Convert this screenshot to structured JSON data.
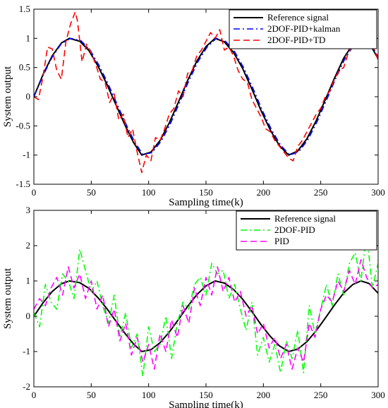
{
  "chart_data": [
    {
      "type": "line",
      "xlabel": "Sampling time(k)",
      "ylabel": "System output",
      "xlim": [
        0,
        300
      ],
      "ylim": [
        -1.5,
        1.5
      ],
      "xticks": [
        "0",
        "50",
        "100",
        "150",
        "200",
        "250",
        "300"
      ],
      "yticks": [
        "-1.5",
        "-1",
        "-0.5",
        "0",
        "0.5",
        "1",
        "1.5"
      ],
      "legend_position": "top-right",
      "series": [
        {
          "name": "Reference signal",
          "color": "#000000",
          "style": "solid",
          "x": [
            0,
            8,
            16,
            24,
            31,
            40,
            48,
            56,
            64,
            72,
            80,
            87,
            94,
            102,
            110,
            118,
            126,
            134,
            142,
            150,
            158,
            166,
            174,
            182,
            190,
            198,
            206,
            214,
            222,
            230,
            238,
            246,
            254,
            262,
            270,
            278,
            285,
            292,
            300
          ],
          "y": [
            0,
            0.38,
            0.7,
            0.92,
            1.0,
            0.95,
            0.79,
            0.52,
            0.2,
            -0.16,
            -0.51,
            -0.79,
            -1.0,
            -0.95,
            -0.75,
            -0.45,
            -0.09,
            0.28,
            0.61,
            0.86,
            1.0,
            0.94,
            0.76,
            0.48,
            0.13,
            -0.24,
            -0.57,
            -0.84,
            -1.0,
            -0.93,
            -0.72,
            -0.41,
            -0.05,
            0.32,
            0.66,
            0.9,
            1.0,
            0.93,
            0.65
          ]
        },
        {
          "name": "2DOF-PID+kalman",
          "color": "#0000ff",
          "style": "dashdot",
          "x": [
            0,
            8,
            16,
            24,
            32,
            41,
            49,
            57,
            65,
            73,
            81,
            88,
            95,
            103,
            111,
            119,
            127,
            135,
            143,
            151,
            159,
            167,
            175,
            183,
            191,
            199,
            207,
            215,
            223,
            231,
            239,
            247,
            255,
            263,
            271,
            279,
            286,
            293,
            300
          ],
          "y": [
            0,
            0.36,
            0.68,
            0.91,
            1.0,
            0.96,
            0.8,
            0.53,
            0.21,
            -0.15,
            -0.5,
            -0.78,
            -0.99,
            -0.96,
            -0.76,
            -0.46,
            -0.1,
            0.27,
            0.6,
            0.85,
            1.0,
            0.95,
            0.77,
            0.49,
            0.14,
            -0.23,
            -0.56,
            -0.83,
            -1.0,
            -0.94,
            -0.73,
            -0.42,
            -0.06,
            0.31,
            0.65,
            0.89,
            1.0,
            0.94,
            0.68
          ]
        },
        {
          "name": "2DOF-PID+TD",
          "color": "#ff0000",
          "style": "dashed",
          "x": [
            0,
            4,
            8,
            12,
            16,
            20,
            24,
            28,
            32,
            36,
            38,
            42,
            46,
            50,
            54,
            58,
            62,
            66,
            70,
            74,
            78,
            82,
            86,
            90,
            94,
            98,
            102,
            106,
            110,
            114,
            118,
            122,
            126,
            130,
            134,
            138,
            142,
            146,
            150,
            154,
            158,
            162,
            166,
            170,
            174,
            178,
            182,
            186,
            190,
            194,
            198,
            202,
            206,
            210,
            214,
            218,
            222,
            226,
            230,
            234,
            238,
            242,
            246,
            250,
            254,
            258,
            262,
            266,
            270,
            274,
            278,
            282,
            286,
            290,
            294,
            298,
            300
          ],
          "y": [
            0,
            -0.05,
            0.35,
            0.85,
            0.82,
            0.45,
            0.3,
            0.95,
            1.25,
            1.45,
            1.3,
            0.6,
            0.9,
            0.75,
            0.55,
            0.3,
            0.25,
            -0.1,
            0.05,
            -0.4,
            -0.3,
            -0.7,
            -0.55,
            -0.95,
            -1.3,
            -1.0,
            -1.1,
            -0.7,
            -0.75,
            -0.55,
            -0.3,
            -0.2,
            0.1,
            0.0,
            0.4,
            0.45,
            0.7,
            0.8,
            0.95,
            1.1,
            1.0,
            1.15,
            0.8,
            0.85,
            0.7,
            0.45,
            0.3,
            0.25,
            -0.05,
            -0.2,
            -0.35,
            -0.55,
            -0.6,
            -0.75,
            -0.85,
            -0.95,
            -1.05,
            -1.1,
            -0.85,
            -0.75,
            -0.6,
            -0.45,
            -0.3,
            -0.2,
            0.0,
            0.1,
            0.3,
            0.45,
            0.5,
            0.75,
            0.9,
            1.05,
            1.2,
            1.3,
            0.9,
            0.75,
            0.62
          ]
        }
      ]
    },
    {
      "type": "line",
      "xlabel": "Sampling time(k)",
      "ylabel": "System output",
      "xlim": [
        0,
        300
      ],
      "ylim": [
        -2,
        3
      ],
      "xticks": [
        "0",
        "50",
        "100",
        "150",
        "200",
        "250",
        "300"
      ],
      "yticks": [
        "-2",
        "-1",
        "0",
        "1",
        "2",
        "3"
      ],
      "legend_position": "top-right",
      "series": [
        {
          "name": "Reference signal",
          "color": "#000000",
          "style": "solid",
          "x": [
            0,
            8,
            16,
            24,
            31,
            40,
            48,
            56,
            64,
            72,
            80,
            87,
            94,
            102,
            110,
            118,
            126,
            134,
            142,
            150,
            158,
            166,
            174,
            182,
            190,
            198,
            206,
            214,
            222,
            230,
            238,
            246,
            254,
            262,
            270,
            278,
            285,
            292,
            300
          ],
          "y": [
            0,
            0.38,
            0.7,
            0.92,
            1.0,
            0.95,
            0.79,
            0.52,
            0.2,
            -0.16,
            -0.51,
            -0.79,
            -1.0,
            -0.95,
            -0.75,
            -0.45,
            -0.09,
            0.28,
            0.61,
            0.86,
            1.0,
            0.94,
            0.76,
            0.48,
            0.13,
            -0.24,
            -0.57,
            -0.84,
            -1.0,
            -0.93,
            -0.72,
            -0.41,
            -0.05,
            0.32,
            0.66,
            0.9,
            1.0,
            0.93,
            0.65
          ]
        },
        {
          "name": "2DOF-PID",
          "color": "#00ff00",
          "style": "dashdot",
          "x": [
            0,
            5,
            10,
            15,
            20,
            25,
            30,
            35,
            40,
            45,
            50,
            55,
            60,
            65,
            70,
            75,
            80,
            85,
            90,
            95,
            100,
            105,
            110,
            115,
            120,
            125,
            130,
            135,
            140,
            145,
            150,
            155,
            160,
            165,
            170,
            175,
            180,
            185,
            190,
            195,
            200,
            205,
            210,
            215,
            220,
            225,
            230,
            235,
            240,
            245,
            250,
            255,
            260,
            265,
            270,
            275,
            280,
            285,
            290,
            295,
            300
          ],
          "y": [
            0.1,
            -0.3,
            0.9,
            0.4,
            0.2,
            1.2,
            1.0,
            0.5,
            1.9,
            1.3,
            0.7,
            1.0,
            0.3,
            -0.2,
            0.6,
            -0.6,
            0.1,
            -0.9,
            -0.5,
            -1.7,
            -0.3,
            -1.0,
            -0.8,
            0.0,
            -1.2,
            -0.2,
            0.4,
            0.2,
            0.9,
            1.1,
            0.6,
            1.5,
            1.2,
            1.3,
            0.5,
            0.9,
            0.2,
            -0.4,
            0.4,
            -1.1,
            -0.6,
            -1.3,
            -0.8,
            -1.6,
            -0.7,
            -1.2,
            -0.4,
            -1.6,
            0.3,
            -0.5,
            0.2,
            0.9,
            0.3,
            1.2,
            0.6,
            1.5,
            1.8,
            1.0,
            2.35,
            0.8,
            1.5
          ]
        },
        {
          "name": "PID",
          "color": "#ff00ff",
          "style": "dashed",
          "x": [
            0,
            5,
            10,
            15,
            20,
            25,
            30,
            35,
            40,
            45,
            50,
            55,
            60,
            65,
            70,
            75,
            80,
            85,
            90,
            95,
            100,
            105,
            110,
            115,
            120,
            125,
            130,
            135,
            140,
            145,
            150,
            155,
            160,
            165,
            170,
            175,
            180,
            185,
            190,
            195,
            200,
            205,
            210,
            215,
            220,
            225,
            230,
            235,
            240,
            245,
            250,
            255,
            260,
            265,
            270,
            275,
            280,
            285,
            290,
            295,
            300
          ],
          "y": [
            0.2,
            0.5,
            0.3,
            0.8,
            1.1,
            0.6,
            1.4,
            0.8,
            1.2,
            0.5,
            1.0,
            0.2,
            0.6,
            -0.3,
            0.2,
            -0.7,
            -0.2,
            -1.1,
            -0.6,
            -1.3,
            -0.8,
            -1.5,
            -0.5,
            -1.0,
            -0.1,
            -0.6,
            0.3,
            -0.2,
            0.8,
            0.3,
            1.1,
            0.6,
            1.4,
            0.7,
            1.1,
            0.4,
            0.7,
            0.0,
            0.3,
            -0.5,
            -0.2,
            -0.9,
            -0.6,
            -1.2,
            -0.8,
            -1.5,
            -0.9,
            -1.3,
            -0.2,
            -0.6,
            0.2,
            0.6,
            0.4,
            1.0,
            0.7,
            1.3,
            0.9,
            1.6,
            1.1,
            0.8,
            0.9
          ]
        }
      ]
    }
  ]
}
